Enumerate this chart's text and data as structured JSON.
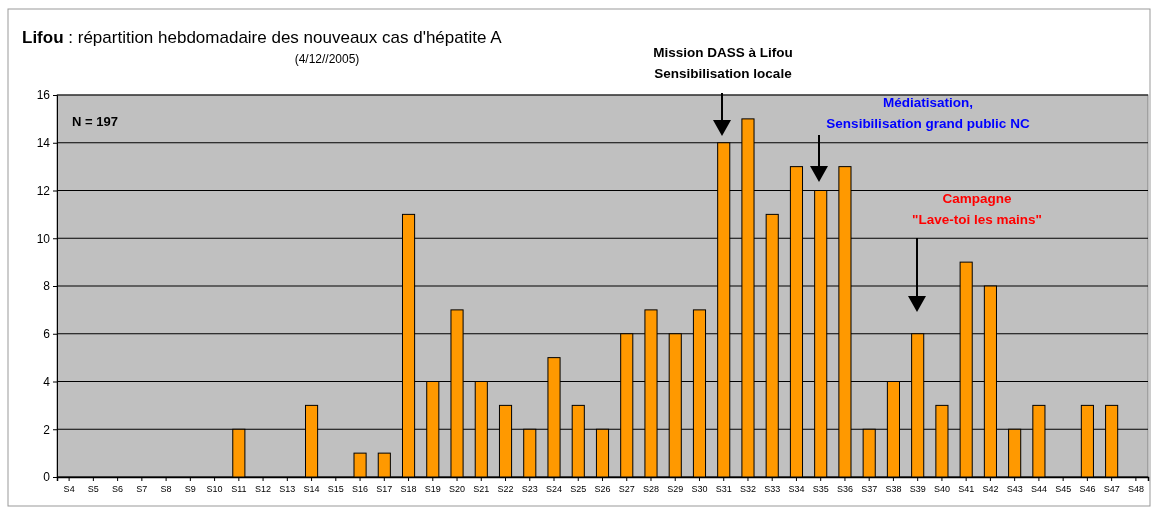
{
  "chart_data": {
    "type": "bar",
    "title": "Lifou : répartition hebdomadaire des nouveaux cas d'hépatite A",
    "subtitle": "(4/12//2005)",
    "categories": [
      "S4",
      "S5",
      "S6",
      "S7",
      "S8",
      "S9",
      "S10",
      "S11",
      "S12",
      "S13",
      "S14",
      "S15",
      "S16",
      "S17",
      "S18",
      "S19",
      "S20",
      "S21",
      "S22",
      "S23",
      "S24",
      "S25",
      "S26",
      "S27",
      "S28",
      "S29",
      "S30",
      "S31",
      "S32",
      "S33",
      "S34",
      "S35",
      "S36",
      "S37",
      "S38",
      "S39",
      "S40",
      "S41",
      "S42",
      "S43",
      "S44",
      "S45",
      "S46",
      "S47",
      "S48"
    ],
    "values": [
      0,
      0,
      0,
      0,
      0,
      0,
      0,
      2,
      0,
      0,
      3,
      0,
      1,
      1,
      11,
      4,
      7,
      4,
      3,
      2,
      5,
      3,
      2,
      6,
      7,
      6,
      7,
      14,
      15,
      11,
      13,
      12,
      13,
      2,
      4,
      6,
      3,
      9,
      8,
      2,
      3,
      0,
      3,
      3,
      0
    ],
    "color": "#ff9900",
    "ylim": [
      0,
      16
    ],
    "yticks": [
      0,
      2,
      4,
      6,
      8,
      10,
      12,
      14,
      16
    ],
    "grid": "y",
    "annotations": [
      "N = 197",
      "Mission DASS à Lifou\nSensibilisation locale",
      "Médiatisation,\nSensibilisation grand public NC",
      "Campagne\n\"Lave-toi les mains\""
    ]
  }
}
